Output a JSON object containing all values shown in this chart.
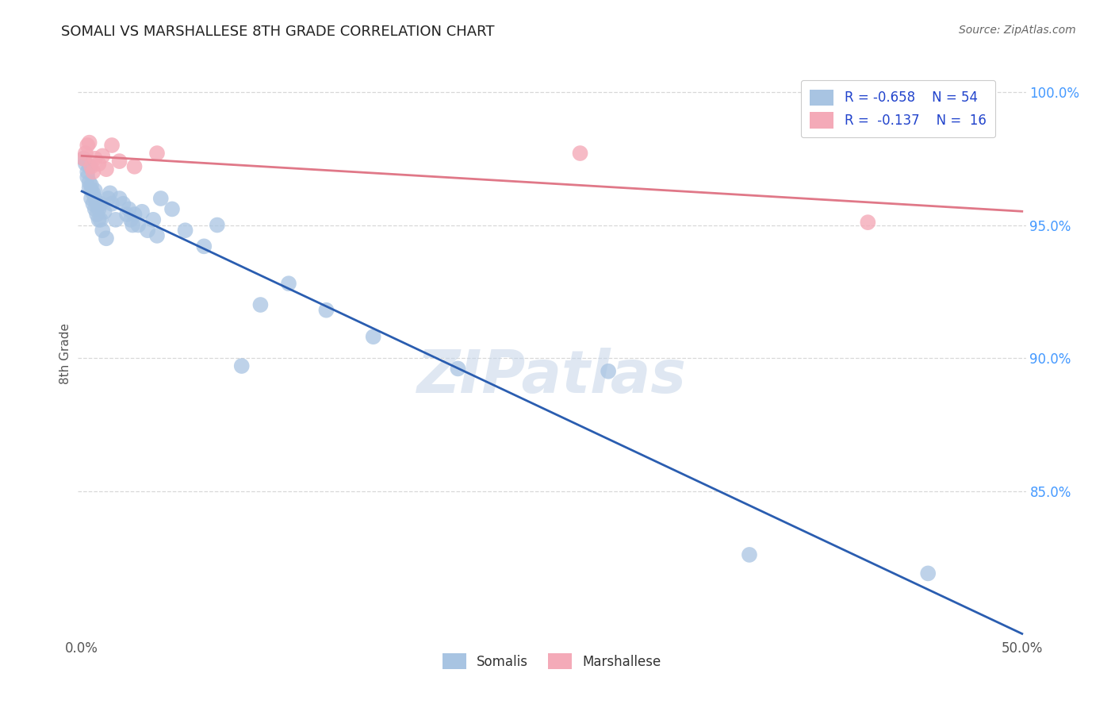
{
  "title": "SOMALI VS MARSHALLESE 8TH GRADE CORRELATION CHART",
  "source": "Source: ZipAtlas.com",
  "ylabel": "8th Grade",
  "ylim": [
    0.795,
    1.008
  ],
  "xlim": [
    -0.002,
    0.502
  ],
  "ytick_values": [
    0.85,
    0.9,
    0.95,
    1.0
  ],
  "xtick_values": [
    0.0,
    0.1,
    0.2,
    0.3,
    0.4,
    0.5
  ],
  "somali_R": -0.658,
  "somali_N": 54,
  "marshallese_R": -0.137,
  "marshallese_N": 16,
  "somali_color": "#a8c4e2",
  "somali_line_color": "#2a5db0",
  "marshallese_color": "#f4aab8",
  "marshallese_line_color": "#e07888",
  "background_color": "#ffffff",
  "grid_color": "#d8d8d8",
  "watermark": "ZIPatlas",
  "somali_x": [
    0.001,
    0.002,
    0.003,
    0.003,
    0.004,
    0.004,
    0.004,
    0.005,
    0.005,
    0.005,
    0.006,
    0.006,
    0.007,
    0.007,
    0.007,
    0.008,
    0.008,
    0.009,
    0.009,
    0.01,
    0.01,
    0.011,
    0.012,
    0.013,
    0.014,
    0.015,
    0.016,
    0.018,
    0.02,
    0.022,
    0.024,
    0.025,
    0.026,
    0.027,
    0.028,
    0.03,
    0.032,
    0.035,
    0.038,
    0.04,
    0.042,
    0.048,
    0.055,
    0.065,
    0.072,
    0.085,
    0.095,
    0.11,
    0.13,
    0.155,
    0.2,
    0.28,
    0.355,
    0.45
  ],
  "somali_y": [
    0.975,
    0.973,
    0.97,
    0.968,
    0.972,
    0.966,
    0.964,
    0.963,
    0.96,
    0.965,
    0.962,
    0.958,
    0.963,
    0.96,
    0.956,
    0.958,
    0.954,
    0.956,
    0.952,
    0.952,
    0.958,
    0.948,
    0.955,
    0.945,
    0.96,
    0.962,
    0.958,
    0.952,
    0.96,
    0.958,
    0.954,
    0.956,
    0.952,
    0.95,
    0.954,
    0.95,
    0.955,
    0.948,
    0.952,
    0.946,
    0.96,
    0.956,
    0.948,
    0.942,
    0.95,
    0.897,
    0.92,
    0.928,
    0.918,
    0.908,
    0.896,
    0.895,
    0.826,
    0.819
  ],
  "marshallese_x": [
    0.001,
    0.002,
    0.003,
    0.004,
    0.005,
    0.006,
    0.007,
    0.009,
    0.011,
    0.013,
    0.016,
    0.02,
    0.028,
    0.04,
    0.265,
    0.418
  ],
  "marshallese_y": [
    0.975,
    0.977,
    0.98,
    0.981,
    0.972,
    0.97,
    0.975,
    0.973,
    0.976,
    0.971,
    0.98,
    0.974,
    0.972,
    0.977,
    0.977,
    0.951
  ]
}
